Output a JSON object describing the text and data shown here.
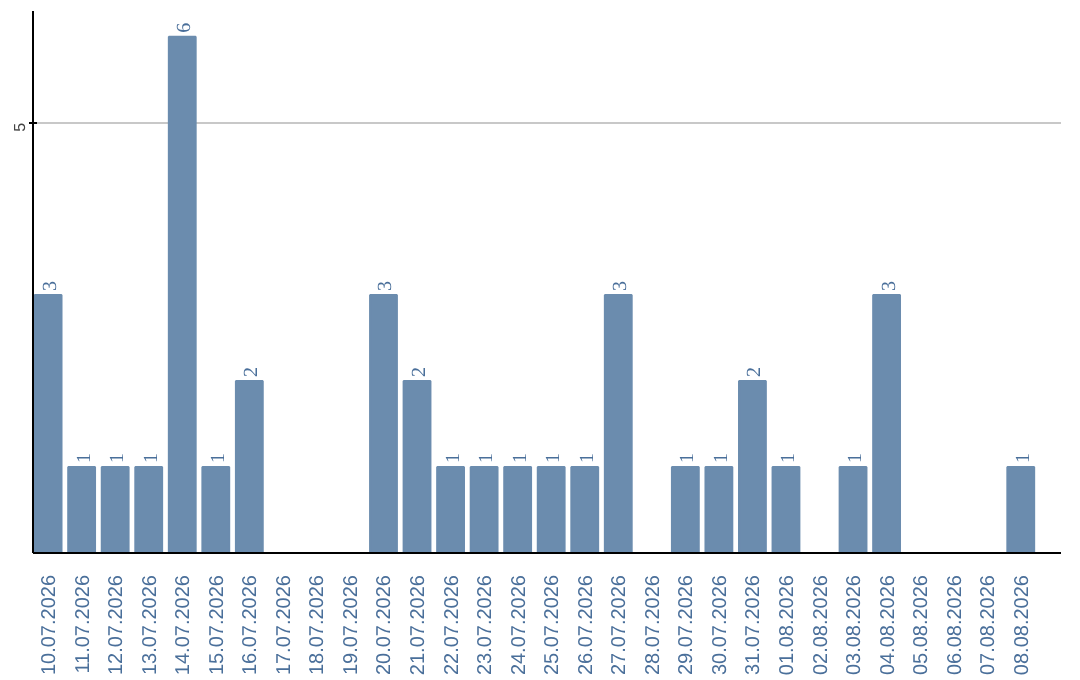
{
  "chart_data": {
    "type": "bar",
    "categories": [
      "10.07.2026",
      "11.07.2026",
      "12.07.2026",
      "13.07.2026",
      "14.07.2026",
      "15.07.2026",
      "16.07.2026",
      "17.07.2026",
      "18.07.2026",
      "19.07.2026",
      "20.07.2026",
      "21.07.2026",
      "22.07.2026",
      "23.07.2026",
      "24.07.2026",
      "25.07.2026",
      "26.07.2026",
      "27.07.2026",
      "28.07.2026",
      "29.07.2026",
      "30.07.2026",
      "31.07.2026",
      "01.08.2026",
      "02.08.2026",
      "03.08.2026",
      "04.08.2026",
      "05.08.2026",
      "06.08.2026",
      "07.08.2026",
      "08.08.2026"
    ],
    "values": [
      3,
      1,
      1,
      1,
      6,
      1,
      2,
      0,
      0,
      0,
      3,
      2,
      1,
      1,
      1,
      1,
      1,
      3,
      0,
      1,
      1,
      2,
      1,
      0,
      1,
      3,
      0,
      0,
      0,
      1
    ],
    "value_labels": [
      "3",
      "1",
      "1",
      "1",
      "6",
      "1",
      "2",
      null,
      null,
      null,
      "3",
      "2",
      "1",
      "1",
      "1",
      "1",
      "1",
      "3",
      null,
      "1",
      "1",
      "2",
      "1",
      null,
      "1",
      "3",
      null,
      null,
      null,
      "1"
    ],
    "color": "#6b8cae",
    "ylim": [
      0,
      6.3
    ],
    "yticks": [
      5
    ],
    "grid": "y"
  }
}
